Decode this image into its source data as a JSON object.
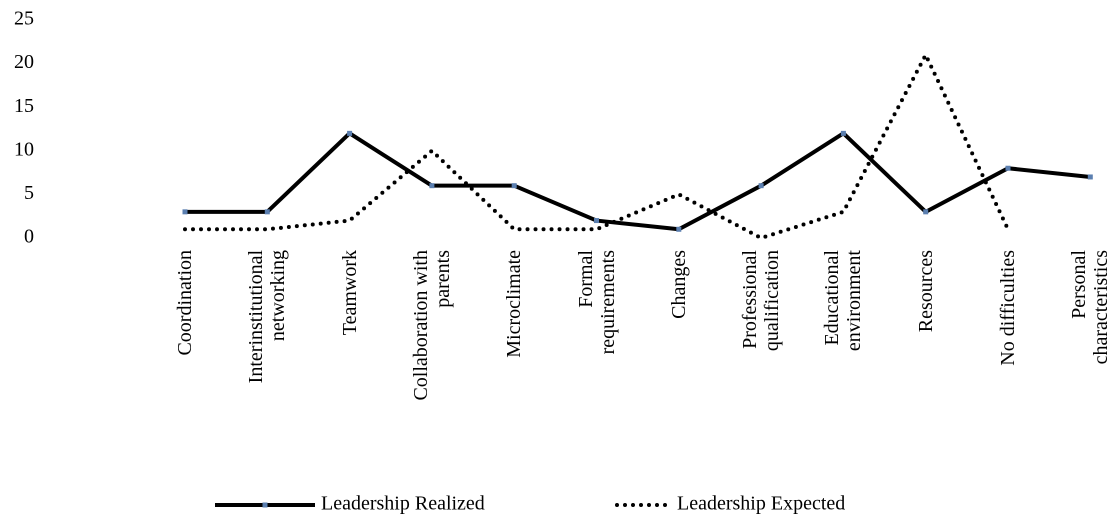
{
  "chart_data": {
    "type": "line",
    "categories": [
      "Coordination",
      "Interinstitutional\nnetworking",
      "Teamwork",
      "Collaboration with\nparents",
      "Microclimate",
      "Formal\nrequirements",
      "Changes",
      "Professional\nqualification",
      "Educational\nenvironment",
      "Resources",
      "No  difficulties",
      "Personal\ncharacteristics"
    ],
    "series": [
      {
        "name": "Leadership Realized",
        "color": "#000000",
        "style": "solid",
        "values": [
          3,
          3,
          12,
          6,
          6,
          2,
          1,
          6,
          12,
          3,
          8,
          7
        ]
      },
      {
        "name": "Leadership Expected",
        "color": "#000000",
        "style": "dotted",
        "values": [
          1,
          1,
          2,
          10,
          1,
          1,
          5,
          0,
          3,
          21,
          1,
          null
        ]
      }
    ],
    "ylim": [
      0,
      25
    ],
    "yticks": [
      0,
      5,
      10,
      15,
      20,
      25
    ],
    "grid": false,
    "legend": "bottom"
  }
}
